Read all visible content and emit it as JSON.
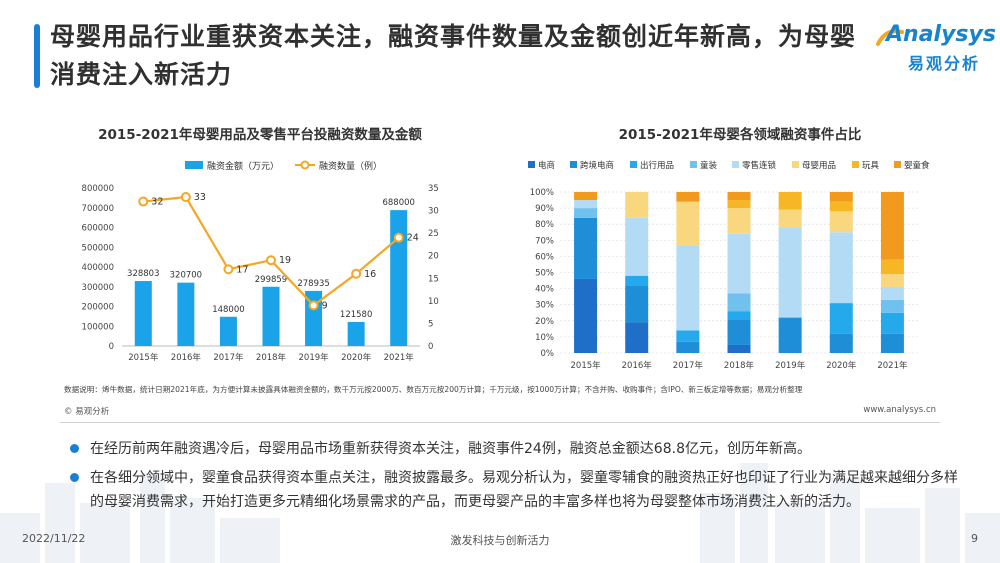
{
  "header": {
    "title": "母婴用品行业重获资本关注，融资事件数量及金额创近年新高，为母婴消费注入新活力",
    "logo_en": "Analysys",
    "logo_cn": "易观分析"
  },
  "colors": {
    "accent": "#1a7fd4",
    "bar_blue": "#1aa3e8",
    "line_orange": "#f5a623"
  },
  "chart_data": [
    {
      "type": "bar",
      "title": "2015-2021年母婴用品及零售平台投融资数量及金额",
      "categories": [
        "2015年",
        "2016年",
        "2017年",
        "2018年",
        "2019年",
        "2020年",
        "2021年"
      ],
      "series": [
        {
          "name": "融资金额（万元）",
          "type": "bar",
          "axis": "left",
          "values": [
            328803,
            320700,
            148000,
            299859,
            278935,
            121580,
            688000
          ]
        },
        {
          "name": "融资数量（例）",
          "type": "line",
          "axis": "right",
          "values": [
            32,
            33,
            17,
            19,
            9,
            16,
            24
          ]
        }
      ],
      "y_left_ticks": [
        "0",
        "100000",
        "200000",
        "300000",
        "400000",
        "500000",
        "600000",
        "700000",
        "800000"
      ],
      "y_right_ticks": [
        "0",
        "5",
        "10",
        "15",
        "20",
        "25",
        "30",
        "35"
      ],
      "ylim_left": [
        0,
        800000
      ],
      "ylim_right": [
        0,
        35
      ],
      "legend": "top"
    },
    {
      "type": "bar",
      "stacked": "percent",
      "title": "2015-2021年母婴各领域融资事件占比",
      "categories": [
        "2015年",
        "2016年",
        "2017年",
        "2018年",
        "2019年",
        "2020年",
        "2021年"
      ],
      "series": [
        {
          "name": "电商",
          "color": "#1f6fc9",
          "values": [
            0.46,
            0.19,
            0,
            0.05,
            0,
            0,
            0
          ]
        },
        {
          "name": "跨境电商",
          "color": "#1e8fd6",
          "values": [
            0.38,
            0.23,
            0.07,
            0.16,
            0.22,
            0.12,
            0.12
          ]
        },
        {
          "name": "出行用品",
          "color": "#23a9ec",
          "values": [
            0,
            0.06,
            0.07,
            0.05,
            0,
            0.19,
            0.13
          ]
        },
        {
          "name": "童装",
          "color": "#71c1ee",
          "values": [
            0.06,
            0,
            0,
            0.11,
            0,
            0,
            0.08
          ]
        },
        {
          "name": "零售连锁",
          "color": "#b4dbf5",
          "values": [
            0.05,
            0.36,
            0.53,
            0.37,
            0.56,
            0.44,
            0.08
          ]
        },
        {
          "name": "母婴用品",
          "color": "#f8d77f",
          "values": [
            0,
            0.16,
            0.27,
            0.16,
            0.11,
            0.13,
            0.08
          ]
        },
        {
          "name": "玩具",
          "color": "#f6b626",
          "values": [
            0,
            0,
            0,
            0.05,
            0.11,
            0.06,
            0.09
          ]
        },
        {
          "name": "婴童食品",
          "color": "#f29a1d",
          "values": [
            0.05,
            0,
            0.06,
            0.05,
            0,
            0.06,
            0.42
          ]
        }
      ],
      "y_ticks": [
        "0%",
        "10%",
        "20%",
        "30%",
        "40%",
        "50%",
        "60%",
        "70%",
        "80%",
        "90%",
        "100%"
      ],
      "ylim": [
        0,
        1
      ],
      "legend": "top"
    }
  ],
  "note": "数据说明：烯牛数据，统计日期2021年底，为方便计算未披露具体融资金额的，数千万元按2000万、数百万元按200万计算；千万元级，按1000万计算；不含并购、收购事件；含IPO、新三板定增等数据；易观分析整理",
  "source_left": "© 易观分析",
  "source_right": "www.analysys.cn",
  "bullets": [
    "在经历前两年融资遇冷后，母婴用品市场重新获得资本关注，融资事件24例，融资总金额达68.8亿元，创历年新高。",
    "在各细分领域中，婴童食品获得资本重点关注，融资披露最多。易观分析认为，婴童零辅食的融资热正好也印证了行业为满足越来越细分多样的母婴消费需求，开始打造更多元精细化场景需求的产品，而更母婴产品的丰富多样也将为母婴整体市场消费注入新的活力。"
  ],
  "footer": {
    "date": "2022/11/22",
    "center": "激发科技与创新活力",
    "page": "9"
  }
}
